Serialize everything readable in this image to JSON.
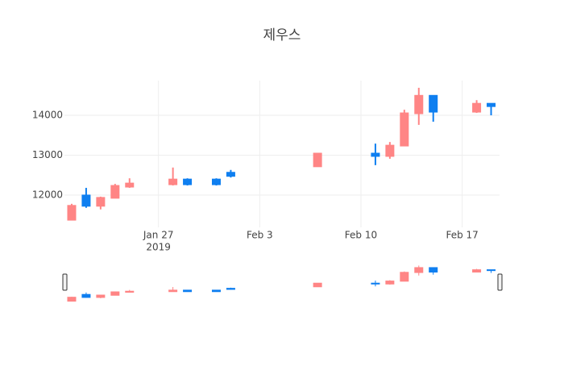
{
  "chart_data": {
    "type": "candlestick",
    "title": "제우스",
    "x": [
      "2019-01-21",
      "2019-01-22",
      "2019-01-23",
      "2019-01-24",
      "2019-01-25",
      "2019-01-28",
      "2019-01-29",
      "2019-01-31",
      "2019-02-01",
      "2019-02-07",
      "2019-02-11",
      "2019-02-12",
      "2019-02-13",
      "2019-02-14",
      "2019-02-15",
      "2019-02-18",
      "2019-02-19"
    ],
    "open": [
      11370,
      12000,
      11720,
      11920,
      12200,
      12260,
      12400,
      12400,
      12570,
      12710,
      13050,
      12970,
      13230,
      14040,
      14500,
      14080,
      14300
    ],
    "high": [
      11780,
      12180,
      11960,
      12280,
      12420,
      12690,
      12420,
      12420,
      12630,
      13050,
      13290,
      13330,
      14140,
      14690,
      14500,
      14380,
      14300
    ],
    "low": [
      11370,
      11680,
      11640,
      11920,
      12180,
      12240,
      12240,
      12240,
      12440,
      12710,
      12750,
      12910,
      13230,
      13760,
      13840,
      14060,
      14000
    ],
    "close": [
      11740,
      11720,
      11940,
      12240,
      12300,
      12400,
      12260,
      12260,
      12470,
      13050,
      12970,
      13250,
      14060,
      14500,
      14080,
      14300,
      14220
    ],
    "increasing_color": "#ff8585",
    "decreasing_color": "#0f7ff0",
    "xlim": [
      "2019-01-20T12:00:00",
      "2019-02-19T14:00:00"
    ],
    "xticks": [
      {
        "value": "2019-01-27",
        "label": "Jan 27"
      },
      {
        "value": "2019-02-03",
        "label": "Feb 3"
      },
      {
        "value": "2019-02-10",
        "label": "Feb 10"
      },
      {
        "value": "2019-02-17",
        "label": "Feb 17"
      }
    ],
    "x_year_label": "2019",
    "ylim": [
      11190,
      14870
    ],
    "yticks": [
      12000,
      13000,
      14000
    ],
    "grid": true,
    "rangeslider": true
  }
}
